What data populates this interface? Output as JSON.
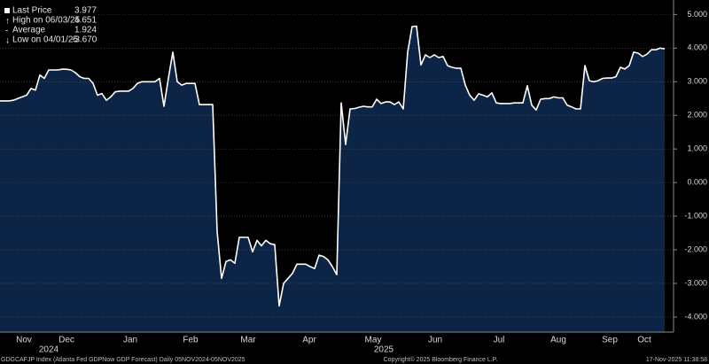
{
  "chart_data": {
    "type": "area",
    "stats": [
      {
        "name": "Last Price",
        "value": "3.977"
      },
      {
        "name": "High on 06/03/25",
        "value": "4.651"
      },
      {
        "name": "Average",
        "value": "1.924"
      },
      {
        "name": "Low on 04/01/25",
        "value": "-3.670"
      }
    ],
    "values": [
      2.43,
      2.43,
      2.43,
      2.45,
      2.5,
      2.55,
      2.6,
      2.8,
      2.75,
      3.2,
      3.1,
      3.35,
      3.35,
      3.35,
      3.37,
      3.37,
      3.35,
      3.27,
      3.15,
      3.1,
      3.1,
      2.95,
      2.6,
      2.65,
      2.45,
      2.55,
      2.7,
      2.72,
      2.72,
      2.72,
      2.8,
      2.95,
      3.0,
      3.0,
      3.0,
      3.0,
      3.1,
      2.27,
      3.1,
      3.88,
      3.0,
      2.9,
      2.95,
      2.95,
      2.95,
      2.32,
      2.32,
      2.32,
      2.32,
      -1.45,
      -2.85,
      -2.35,
      -2.3,
      -2.4,
      -1.63,
      -1.63,
      -1.63,
      -2.06,
      -1.72,
      -1.88,
      -1.72,
      -1.82,
      -1.85,
      -3.67,
      -3.0,
      -2.85,
      -2.7,
      -2.43,
      -2.43,
      -2.43,
      -2.5,
      -2.56,
      -2.16,
      -2.2,
      -2.3,
      -2.5,
      -2.74,
      2.37,
      1.13,
      2.19,
      2.2,
      2.24,
      2.27,
      2.25,
      2.25,
      2.48,
      2.35,
      2.4,
      2.4,
      2.32,
      2.4,
      2.19,
      3.88,
      4.64,
      4.651,
      3.5,
      3.8,
      3.72,
      3.8,
      3.72,
      3.75,
      3.48,
      3.43,
      3.4,
      3.4,
      2.9,
      2.6,
      2.45,
      2.64,
      2.6,
      2.55,
      2.67,
      2.37,
      2.35,
      2.35,
      2.35,
      2.37,
      2.37,
      2.37,
      2.88,
      2.3,
      2.16,
      2.48,
      2.5,
      2.5,
      2.55,
      2.52,
      2.52,
      2.3,
      2.25,
      2.19,
      2.19,
      3.48,
      3.03,
      3.0,
      3.03,
      3.1,
      3.11,
      3.11,
      3.15,
      3.43,
      3.38,
      3.48,
      3.88,
      3.85,
      3.75,
      3.82,
      3.95,
      3.95,
      4.0,
      3.977
    ],
    "color": "#0c2547",
    "line_color": "#ffffff",
    "xlim": [
      0,
      152
    ],
    "xticks": [
      {
        "value": 5.4,
        "label": "Nov"
      },
      {
        "value": 15,
        "label": "Dec"
      },
      {
        "value": 29.4,
        "label": "Jan"
      },
      {
        "value": 43,
        "label": "Feb"
      },
      {
        "value": 56,
        "label": "Mar"
      },
      {
        "value": 69.8,
        "label": "Apr"
      },
      {
        "value": 84.2,
        "label": "May"
      },
      {
        "value": 98.2,
        "label": "Jun"
      },
      {
        "value": 112.6,
        "label": "Jul"
      },
      {
        "value": 126,
        "label": "Aug"
      },
      {
        "value": 137.6,
        "label": "Sep"
      },
      {
        "value": 145.4,
        "label": "Oct"
      }
    ],
    "year_ticks": [
      {
        "value": 11,
        "label": "2024"
      },
      {
        "value": 86.6,
        "label": "2025"
      }
    ],
    "ylim": [
      -4.45,
      5.3
    ],
    "yticks": [
      {
        "value": 5,
        "label": "5.000"
      },
      {
        "value": 4,
        "label": "4.000"
      },
      {
        "value": 3,
        "label": "3.000"
      },
      {
        "value": 2,
        "label": "2.000"
      },
      {
        "value": 1,
        "label": "1.000"
      },
      {
        "value": 0,
        "label": "0.000"
      },
      {
        "value": -1,
        "label": "-1.000"
      },
      {
        "value": -2,
        "label": "-2.000"
      },
      {
        "value": -3,
        "label": "-3.000"
      },
      {
        "value": -4,
        "label": "-4.000"
      }
    ],
    "grid": true,
    "footer": {
      "left": "GDGCAFJP Index (Atlanta Fed GDPNow GDP Forecast) Daily 05NOV2024-05NOV2025",
      "center": "Copyright© 2025 Bloomberg Finance L.P.",
      "right": "17-Nov-2025 11:38:58"
    }
  }
}
